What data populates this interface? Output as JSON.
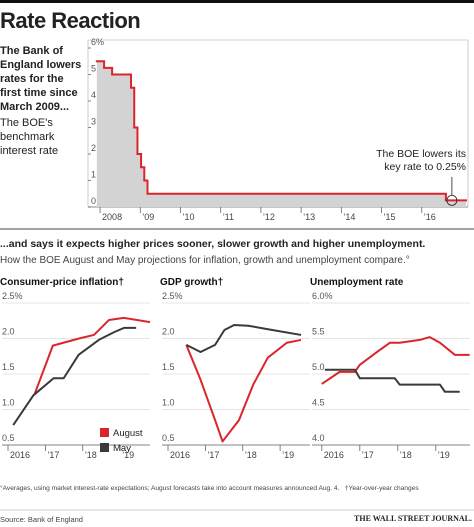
{
  "header": {
    "title": "Rate Reaction",
    "lead": "The Bank of England lowers rates for the first time since March 2009...",
    "sub": "The BOE's benchmark interest rate"
  },
  "section": {
    "headline": "...and says it expects higher prices sooner, slower growth and higher unemployment.",
    "dek": "How the BOE August and May projections for inflation, growth and unemployment compare.°"
  },
  "chart_data": [
    {
      "type": "line",
      "step": true,
      "fill": "#d3d3d3",
      "x": [
        2007.92,
        2008.1,
        2008.3,
        2008.77,
        2008.85,
        2008.93,
        2009.02,
        2009.1,
        2009.18,
        2016.6
      ],
      "series": [
        {
          "color": "#d9262c",
          "values": [
            5.5,
            5.25,
            5.0,
            4.5,
            3.0,
            2.0,
            1.5,
            1.0,
            0.5,
            0.25
          ]
        }
      ],
      "xlim": [
        2007.75,
        2017.1
      ],
      "ylim": [
        0,
        6
      ],
      "yticks": [
        0,
        1,
        2,
        3,
        4,
        5,
        {
          "value": 6,
          "label": "6%"
        }
      ],
      "xticks": [
        2008,
        {
          "value": 2009,
          "label": "’09"
        },
        {
          "value": 2010,
          "label": "’10"
        },
        {
          "value": 2011,
          "label": "’11"
        },
        {
          "value": 2012,
          "label": "’12"
        },
        {
          "value": 2013,
          "label": "’13"
        },
        {
          "value": 2014,
          "label": "’14"
        },
        {
          "value": 2015,
          "label": "’15"
        },
        {
          "value": 2016,
          "label": "’16"
        }
      ],
      "grid": false,
      "annotation": [
        "The BOE lowers its",
        "key rate to 0.25%"
      ]
    },
    {
      "type": "line",
      "title": "Consumer-price inflation†",
      "grid": true,
      "legend": "lower-right",
      "series": [
        {
          "name": "August",
          "color": "#d9262c",
          "x": [
            2016.7,
            2017.2,
            2017.9,
            2018.3,
            2018.7,
            2019.1,
            2019.8
          ],
          "values": [
            1.2,
            1.9,
            2.0,
            2.05,
            2.26,
            2.29,
            2.23
          ]
        },
        {
          "name": "May",
          "color": "#3a3a3a",
          "x": [
            2016.14,
            2016.68,
            2017.22,
            2017.49,
            2017.89,
            2018.43,
            2018.84,
            2019.11,
            2019.43
          ],
          "values": [
            0.78,
            1.2,
            1.44,
            1.44,
            1.77,
            1.98,
            2.09,
            2.15,
            2.15
          ]
        }
      ],
      "xlim": [
        2016.0,
        2019.8
      ],
      "ylim": [
        0.5,
        2.5
      ],
      "yticks": [
        0.5,
        {
          "value": 1,
          "label": "1.0"
        },
        1.5,
        {
          "value": 2,
          "label": "2.0"
        },
        {
          "value": 2.5,
          "label": "2.5%"
        }
      ],
      "xticks": [
        2016,
        {
          "value": 2017,
          "label": "’17"
        },
        {
          "value": 2018,
          "label": "’18"
        },
        {
          "value": 2019,
          "label": "’19"
        }
      ]
    },
    {
      "type": "line",
      "title": "GDP growth†",
      "grid": true,
      "series": [
        {
          "color": "#d9262c",
          "x": [
            2016.49,
            2016.87,
            2017.26,
            2017.46,
            2017.9,
            2018.28,
            2018.67,
            2019.18,
            2019.56
          ],
          "values": [
            1.91,
            1.42,
            0.85,
            0.55,
            0.85,
            1.35,
            1.73,
            1.94,
            1.98
          ]
        },
        {
          "color": "#3a3a3a",
          "x": [
            2016.49,
            2016.87,
            2017.26,
            2017.51,
            2017.77,
            2018.15,
            2018.79,
            2019.56
          ],
          "values": [
            1.91,
            1.81,
            1.91,
            2.12,
            2.19,
            2.18,
            2.12,
            2.05
          ]
        }
      ],
      "xlim": [
        2016.0,
        2019.8
      ],
      "ylim": [
        0.5,
        2.5
      ],
      "yticks": [
        0.5,
        {
          "value": 1,
          "label": "1.0"
        },
        1.5,
        {
          "value": 2,
          "label": "2.0"
        },
        {
          "value": 2.5,
          "label": "2.5%"
        }
      ],
      "xticks": [
        2016,
        {
          "value": 2017,
          "label": "’17"
        },
        {
          "value": 2018,
          "label": "’18"
        },
        {
          "value": 2019,
          "label": "’19"
        }
      ]
    },
    {
      "type": "line",
      "title": "Unemployment rate",
      "grid": true,
      "series": [
        {
          "color": "#d9262c",
          "x": [
            2016.0,
            2016.47,
            2016.87,
            2017.0,
            2017.53,
            2017.79,
            2018.05,
            2018.58,
            2018.84,
            2019.11,
            2019.5,
            2019.89
          ],
          "values": [
            4.86,
            5.03,
            5.03,
            5.13,
            5.34,
            5.44,
            5.44,
            5.48,
            5.52,
            5.44,
            5.27,
            5.27
          ]
        },
        {
          "color": "#3a3a3a",
          "x": [
            2016.08,
            2016.87,
            2017.0,
            2017.92,
            2018.05,
            2019.11,
            2019.24,
            2019.63
          ],
          "values": [
            5.06,
            5.06,
            4.94,
            4.94,
            4.85,
            4.85,
            4.75,
            4.75
          ]
        }
      ],
      "xlim": [
        2015.9,
        2019.9
      ],
      "ylim": [
        4.0,
        6.0
      ],
      "yticks": [
        {
          "value": 4,
          "label": "4.0"
        },
        4.5,
        {
          "value": 5,
          "label": "5.0"
        },
        5.5,
        {
          "value": 6,
          "label": "6.0%"
        }
      ],
      "xticks": [
        2016,
        {
          "value": 2017,
          "label": "’17"
        },
        {
          "value": 2018,
          "label": "’18"
        },
        {
          "value": 2019,
          "label": "’19"
        }
      ]
    }
  ],
  "footer": {
    "note": "°Averages, using market interest-rate expectations; August forecasts take into account measures announced Aug. 4.",
    "note2": "†Year-over-year changes",
    "source": "Source: Bank of England",
    "credit": "THE WALL STREET JOURNAL."
  }
}
